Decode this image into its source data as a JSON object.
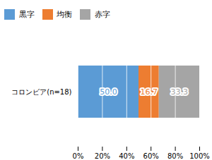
{
  "chart_data": {
    "type": "bar",
    "orientation": "horizontal",
    "stacked": true,
    "categories": [
      "コロンビア(n=18)"
    ],
    "series": [
      {
        "name": "黒字",
        "color": "#5B9BD5",
        "values": [
          50.0
        ],
        "value_labels": [
          "50.0"
        ]
      },
      {
        "name": "均衡",
        "color": "#ED7D31",
        "values": [
          16.7
        ],
        "value_labels": [
          "16.7"
        ]
      },
      {
        "name": "赤字",
        "color": "#A5A5A5",
        "values": [
          33.3
        ],
        "value_labels": [
          "33.3"
        ]
      }
    ],
    "xlim": [
      0,
      100
    ],
    "xticks": [
      {
        "value": 0,
        "label": "0%"
      },
      {
        "value": 20,
        "label": "20%"
      },
      {
        "value": 40,
        "label": "40%"
      },
      {
        "value": 60,
        "label": "60%"
      },
      {
        "value": 80,
        "label": "80%"
      },
      {
        "value": 100,
        "label": "100%"
      }
    ],
    "grid": true,
    "data_labels": true,
    "legend": "upper left"
  }
}
